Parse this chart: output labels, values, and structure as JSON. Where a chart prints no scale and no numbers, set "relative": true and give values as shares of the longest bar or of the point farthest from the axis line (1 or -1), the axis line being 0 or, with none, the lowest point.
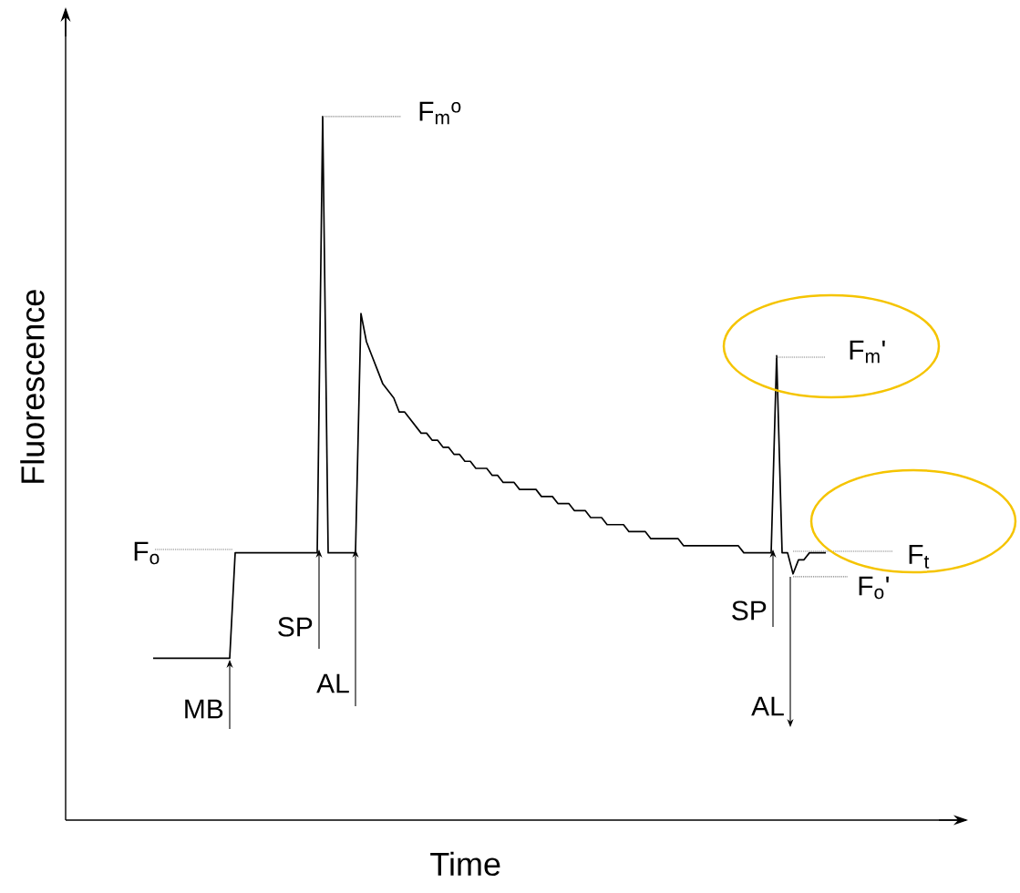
{
  "chart_data": {
    "type": "line",
    "relative": true,
    "xlabel": "Time",
    "ylabel": "Fluorescence",
    "line_style": "solid",
    "categories": [
      null,
      null,
      null,
      null,
      null,
      null,
      null,
      null,
      null,
      null,
      null,
      null,
      null,
      null,
      null,
      null,
      null,
      null,
      null,
      null,
      null,
      null,
      null,
      null,
      null,
      null,
      null,
      null,
      null,
      null,
      null,
      null,
      null,
      null,
      null,
      null,
      null,
      null,
      null,
      null,
      null,
      null,
      null,
      null,
      null,
      null,
      null,
      null,
      null,
      null,
      null,
      null,
      null,
      null,
      null,
      null,
      null,
      null,
      null,
      null,
      null,
      null,
      null,
      null,
      null,
      null,
      null,
      null,
      null,
      null,
      null,
      null,
      null,
      null,
      null,
      null,
      null,
      null,
      null,
      null,
      null,
      null,
      null,
      null,
      null,
      null,
      null,
      null,
      null,
      null,
      null,
      null,
      null,
      null,
      null,
      null,
      null,
      null,
      null,
      null,
      null,
      null,
      null,
      null,
      null,
      null,
      null,
      null,
      null,
      null,
      null,
      null,
      null,
      null,
      null,
      null,
      null,
      null,
      null,
      null,
      null,
      null,
      null,
      null
    ],
    "series": [
      {
        "color": "#000000",
        "values": [
          0.23,
          0.23,
          0.23,
          0.23,
          0.23,
          0.23,
          0.23,
          0.23,
          0.23,
          0.23,
          0.23,
          0.23,
          0.23,
          0.23,
          0.23,
          0.38,
          0.38,
          0.38,
          0.38,
          0.38,
          0.38,
          0.38,
          0.38,
          0.38,
          0.38,
          0.38,
          0.38,
          0.38,
          0.38,
          0.38,
          0.38,
          1.0,
          0.38,
          0.38,
          0.38,
          0.38,
          0.38,
          0.38,
          0.72,
          0.68,
          0.66,
          0.64,
          0.62,
          0.61,
          0.6,
          0.58,
          0.58,
          0.57,
          0.56,
          0.55,
          0.55,
          0.54,
          0.54,
          0.53,
          0.53,
          0.52,
          0.52,
          0.51,
          0.51,
          0.5,
          0.5,
          0.5,
          0.49,
          0.49,
          0.48,
          0.48,
          0.48,
          0.47,
          0.47,
          0.47,
          0.47,
          0.46,
          0.46,
          0.46,
          0.45,
          0.45,
          0.45,
          0.44,
          0.44,
          0.44,
          0.43,
          0.43,
          0.43,
          0.42,
          0.42,
          0.42,
          0.42,
          0.41,
          0.41,
          0.41,
          0.41,
          0.4,
          0.4,
          0.4,
          0.4,
          0.4,
          0.4,
          0.39,
          0.39,
          0.39,
          0.39,
          0.39,
          0.39,
          0.39,
          0.39,
          0.39,
          0.39,
          0.39,
          0.38,
          0.38,
          0.38,
          0.38,
          0.38,
          0.38,
          0.66,
          0.38,
          0.38,
          0.35,
          0.37,
          0.37,
          0.38,
          0.38,
          0.38,
          0.38
        ]
      }
    ],
    "annotations": [
      "F$_{o}$",
      "F$_{m}$$^{o}$",
      "F$_{m}$'",
      "F$_{t}$",
      "F$_{o}$'",
      "MB",
      "SP",
      "AL",
      "SP",
      "AL"
    ]
  }
}
